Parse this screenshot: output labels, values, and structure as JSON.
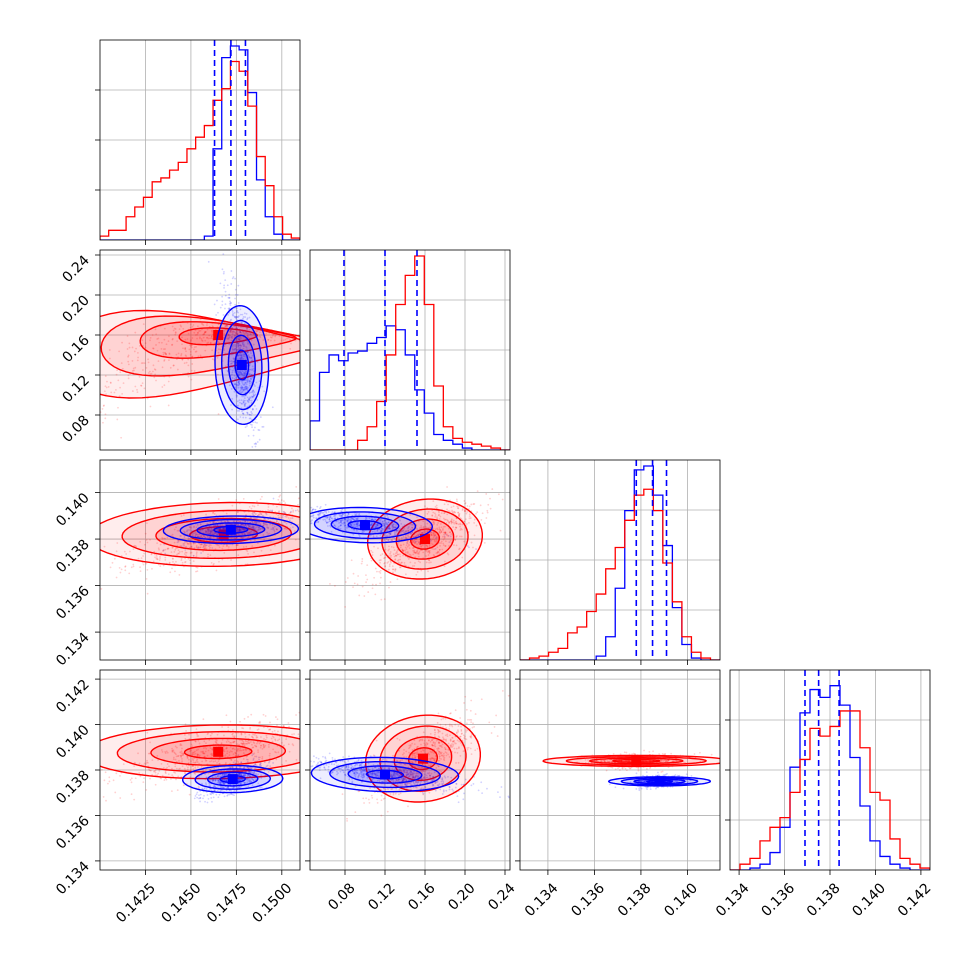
{
  "chart_data": {
    "type": "corner",
    "title": "",
    "parameters": [
      "",
      "",
      "",
      ""
    ],
    "series": [
      {
        "name": "",
        "color": "#ff0000"
      },
      {
        "name": "",
        "color": "#0000ff"
      }
    ],
    "quantile_line_color": "#0000ff",
    "grid": true,
    "axes": [
      {
        "range": [
          0.14,
          0.151
        ],
        "ticks": [
          "0.1425",
          "0.1450",
          "0.1475",
          "0.1500"
        ],
        "tick_values": [
          0.1425,
          0.145,
          0.1475,
          0.15
        ]
      },
      {
        "range": [
          0.045,
          0.245
        ],
        "ticks": [
          "0.08",
          "0.12",
          "0.16",
          "0.20",
          "0.24"
        ],
        "tick_values": [
          0.08,
          0.12,
          0.16,
          0.2,
          0.24
        ]
      },
      {
        "range": [
          0.1328,
          0.1414
        ],
        "ticks": [
          "0.134",
          "0.136",
          "0.138",
          "0.140"
        ],
        "tick_values": [
          0.134,
          0.136,
          0.138,
          0.14
        ]
      },
      {
        "range": [
          0.1336,
          0.1424
        ],
        "ticks": [
          "0.134",
          "0.136",
          "0.138",
          "0.140",
          "0.142"
        ],
        "tick_values": [
          0.134,
          0.136,
          0.138,
          0.14,
          0.142
        ]
      }
    ],
    "marginals": [
      {
        "param": 0,
        "quantiles": [
          0.1463,
          0.1472,
          0.148
        ],
        "red": [
          0.02,
          0.05,
          0.05,
          0.12,
          0.17,
          0.22,
          0.3,
          0.32,
          0.36,
          0.4,
          0.47,
          0.53,
          0.59,
          0.72,
          0.78,
          0.92,
          0.87,
          0.69,
          0.43,
          0.28,
          0.12,
          0.03,
          0.01
        ],
        "blue": [
          0,
          0,
          0,
          0,
          0,
          0,
          0,
          0,
          0,
          0,
          0,
          0,
          0.02,
          0.47,
          0.94,
          1.0,
          0.98,
          0.76,
          0.31,
          0.12,
          0.03,
          0,
          0
        ]
      },
      {
        "param": 1,
        "quantiles": [
          0.079,
          0.12,
          0.152
        ],
        "red": [
          0,
          0,
          0,
          0,
          0,
          0.05,
          0.12,
          0.25,
          0.49,
          0.75,
          0.9,
          1.0,
          0.75,
          0.33,
          0.12,
          0.06,
          0.04,
          0.03,
          0.02,
          0.01,
          0
        ],
        "blue": [
          0.15,
          0.4,
          0.49,
          0.46,
          0.5,
          0.51,
          0.55,
          0.58,
          0.64,
          0.62,
          0.49,
          0.31,
          0.19,
          0.08,
          0.05,
          0.03,
          0.01,
          0,
          0,
          0,
          0
        ]
      },
      {
        "param": 2,
        "quantiles": [
          0.1378,
          0.1385,
          0.1391
        ],
        "red": [
          0,
          0.01,
          0.02,
          0.04,
          0.06,
          0.14,
          0.17,
          0.25,
          0.34,
          0.47,
          0.58,
          0.72,
          0.85,
          0.88,
          0.77,
          0.5,
          0.3,
          0.12,
          0.04,
          0.01,
          0
        ],
        "blue": [
          0,
          0,
          0,
          0,
          0,
          0,
          0,
          0,
          0.02,
          0.12,
          0.37,
          0.77,
          0.98,
          1.0,
          0.85,
          0.59,
          0.27,
          0.08,
          0.01,
          0,
          0
        ]
      },
      {
        "param": 3,
        "quantiles": [
          0.1369,
          0.1375,
          0.1384
        ],
        "red": [
          0,
          0.03,
          0.06,
          0.15,
          0.22,
          0.27,
          0.4,
          0.57,
          0.73,
          0.69,
          0.74,
          0.82,
          0.82,
          0.63,
          0.4,
          0.36,
          0.16,
          0.06,
          0.03,
          0.01
        ],
        "blue": [
          0,
          0,
          0.01,
          0.03,
          0.09,
          0.22,
          0.53,
          0.81,
          0.93,
          0.89,
          0.95,
          0.85,
          0.58,
          0.33,
          0.15,
          0.07,
          0.03,
          0.01,
          0,
          0
        ]
      }
    ],
    "joint": [
      {
        "x_param": 0,
        "y_param": 1,
        "red": {
          "mode": [
            0.1465,
            0.16
          ],
          "axis_dir": [
            0.0045,
            0.018
          ],
          "sigma": [
            0.0045,
            0.017
          ],
          "curve": [
            -0.05,
            -0.06
          ]
        },
        "blue": {
          "mode": [
            0.1478,
            0.13
          ],
          "axis_dir": [
            0.0004,
            -0.04
          ],
          "sigma": [
            0.0008,
            0.03
          ],
          "curve": [
            0.0,
            0.0
          ]
        }
      },
      {
        "x_param": 0,
        "y_param": 2,
        "red": {
          "mode": [
            0.1468,
            0.1382
          ],
          "axis_dir": [
            0.004,
            0.0013
          ],
          "sigma": [
            0.004,
            0.0007
          ],
          "curve": [
            0,
            0
          ]
        },
        "blue": {
          "mode": [
            0.1472,
            0.1384
          ],
          "axis_dir": [
            0.002,
            0.0006
          ],
          "sigma": [
            0.002,
            0.0003
          ],
          "curve": [
            0,
            0
          ]
        }
      },
      {
        "x_param": 1,
        "y_param": 2,
        "red": {
          "mode": [
            0.16,
            0.138
          ],
          "axis_dir": [
            0.03,
            0.0009
          ],
          "sigma": [
            0.03,
            0.0009
          ],
          "curve": [
            0,
            0
          ]
        },
        "blue": {
          "mode": [
            0.1,
            0.1386
          ],
          "axis_dir": [
            0.05,
            -0.0005
          ],
          "sigma": [
            0.035,
            0.0004
          ],
          "curve": [
            0,
            0
          ]
        }
      },
      {
        "x_param": 0,
        "y_param": 3,
        "red": {
          "mode": [
            0.1465,
            0.1388
          ],
          "axis_dir": [
            0.004,
            0.0014
          ],
          "sigma": [
            0.004,
            0.0006
          ],
          "curve": [
            0,
            0
          ]
        },
        "blue": {
          "mode": [
            0.1473,
            0.1376
          ],
          "axis_dir": [
            0.0015,
            0.001
          ],
          "sigma": [
            0.0015,
            0.0003
          ],
          "curve": [
            0,
            0
          ]
        }
      },
      {
        "x_param": 1,
        "y_param": 3,
        "red": {
          "mode": [
            0.158,
            0.1385
          ],
          "axis_dir": [
            0.03,
            0.001
          ],
          "sigma": [
            0.03,
            0.001
          ],
          "curve": [
            0,
            0
          ]
        },
        "blue": {
          "mode": [
            0.12,
            0.1378
          ],
          "axis_dir": [
            0.05,
            -0.0004
          ],
          "sigma": [
            0.038,
            0.0004
          ],
          "curve": [
            0,
            0
          ]
        }
      },
      {
        "x_param": 2,
        "y_param": 3,
        "red": {
          "mode": [
            0.1378,
            0.1384
          ],
          "axis_dir": [
            0.0022,
            0.0025
          ],
          "sigma": [
            0.0022,
            0.00012
          ],
          "curve": [
            0,
            0
          ]
        },
        "blue": {
          "mode": [
            0.1388,
            0.1375
          ],
          "axis_dir": [
            0.0012,
            0.0014
          ],
          "sigma": [
            0.0012,
            0.0001
          ],
          "curve": [
            0,
            0
          ]
        }
      }
    ]
  }
}
